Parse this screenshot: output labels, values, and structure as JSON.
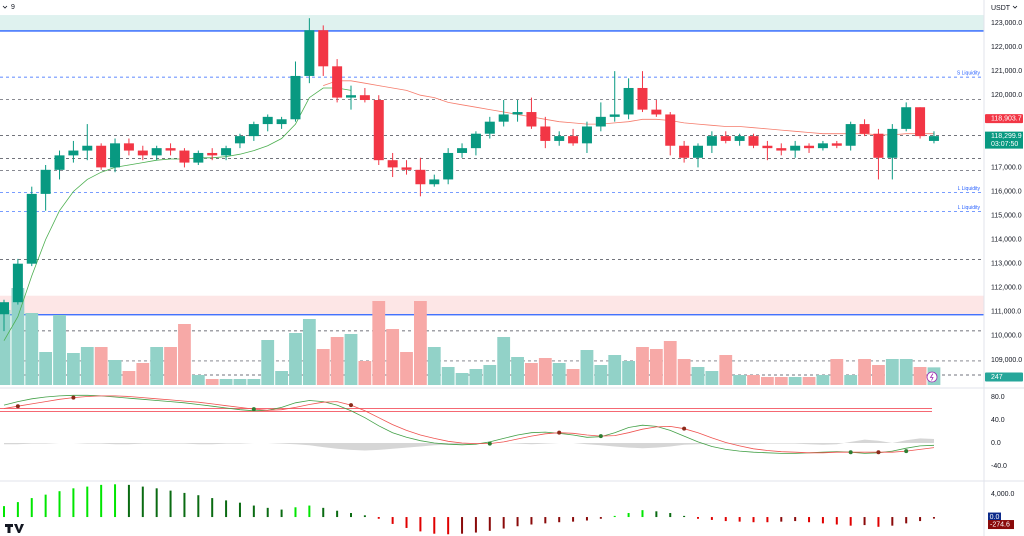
{
  "chart_data": [
    {
      "type": "candlestick",
      "interval": "9",
      "currency": "USDT",
      "ylim": [
        107960,
        123955
      ],
      "yticks": [
        {
          "value": 123000,
          "label": "123,000.0"
        },
        {
          "value": 122000,
          "label": "122,000.0"
        },
        {
          "value": 121000,
          "label": "121,000.0"
        },
        {
          "value": 120000,
          "label": "120,000.0"
        },
        {
          "value": 119000,
          "label": "119,000.0"
        },
        {
          "value": 117000,
          "label": "117,000.0"
        },
        {
          "value": 116000,
          "label": "116,000.0"
        },
        {
          "value": 115000,
          "label": "115,000.0"
        },
        {
          "value": 114000,
          "label": "114,000.0"
        },
        {
          "value": 113000,
          "label": "113,000.0"
        },
        {
          "value": 112000,
          "label": "112,000.0"
        },
        {
          "value": 111000,
          "label": "111,000.0"
        },
        {
          "value": 110000,
          "label": "110,000.0"
        },
        {
          "value": 109000,
          "label": "109,000.0"
        }
      ],
      "zones": [
        {
          "from": 122670,
          "to": 123330,
          "color": "#dff2ef"
        },
        {
          "from": 110880,
          "to": 111670,
          "color": "#fde6e6"
        }
      ],
      "solid_lines": [
        {
          "value": 122670,
          "color": "#2962ff"
        },
        {
          "value": 110880,
          "color": "#2962ff"
        }
      ],
      "levels": [
        {
          "value": 120750,
          "label": "S Liquidity"
        },
        {
          "value": 119830
        },
        {
          "value": 118330
        },
        {
          "value": 117375
        },
        {
          "value": 116875
        },
        {
          "value": 115960,
          "label": "L Liquidity"
        },
        {
          "value": 115170,
          "label": "L Liquidity"
        },
        {
          "value": 113170
        },
        {
          "value": 110210
        },
        {
          "value": 108960
        },
        {
          "value": 108375
        }
      ],
      "colors": {
        "up": "#089981",
        "down": "#f23645",
        "up_volume": "#92d2c8",
        "down_volume": "#f7a9a7",
        "ma_fast": "#4caf50",
        "ma_slow": "#f57c6c"
      },
      "open": [
        110900,
        111400,
        113000,
        115900,
        116900,
        117500,
        117700,
        117900,
        117000,
        118000,
        117700,
        117500,
        117800,
        117700,
        117200,
        117600,
        117500,
        118000,
        118300,
        118800,
        118800,
        119000,
        120800,
        122700,
        121200,
        119900,
        120000,
        119800,
        117300,
        117000,
        116900,
        116300,
        116500,
        117600,
        117800,
        118400,
        118900,
        119200,
        119300,
        118700,
        118100,
        118300,
        118000,
        118700,
        119100,
        119200,
        120300,
        119400,
        119200,
        117900,
        117400,
        117900,
        118300,
        118100,
        118300,
        117900,
        117800,
        117700,
        117900,
        117800,
        118000,
        117900,
        118800,
        118400,
        117400,
        118600,
        119500,
        118100
      ],
      "high": [
        111500,
        113200,
        116200,
        117100,
        117700,
        118100,
        118800,
        118000,
        118200,
        118200,
        117900,
        117900,
        118000,
        117800,
        117700,
        117800,
        117900,
        118400,
        118900,
        119200,
        119100,
        121400,
        123200,
        122900,
        121500,
        120400,
        120300,
        120000,
        117600,
        117300,
        117400,
        116700,
        117800,
        118000,
        118500,
        119100,
        119800,
        119800,
        119900,
        119100,
        118500,
        118600,
        118900,
        119700,
        121000,
        120700,
        121000,
        119800,
        119300,
        118100,
        118000,
        118500,
        118500,
        118400,
        118400,
        118100,
        118000,
        118100,
        118000,
        118100,
        118100,
        118900,
        119000,
        118600,
        118800,
        119700,
        119500,
        118500
      ],
      "low": [
        110200,
        111300,
        112900,
        115200,
        116500,
        117200,
        117300,
        116900,
        116800,
        117500,
        117300,
        117300,
        117500,
        117000,
        117100,
        117300,
        117300,
        117800,
        118100,
        118500,
        118600,
        118900,
        120500,
        120800,
        119700,
        119400,
        119700,
        117100,
        116600,
        116700,
        115800,
        116200,
        116300,
        117400,
        117500,
        118200,
        118700,
        118900,
        118600,
        117800,
        117900,
        117900,
        117600,
        118500,
        118900,
        119000,
        119300,
        119100,
        117500,
        117200,
        117000,
        117600,
        118000,
        117900,
        117800,
        117300,
        117500,
        117400,
        117600,
        117700,
        117800,
        117700,
        118300,
        116500,
        116500,
        118500,
        118200,
        118000
      ],
      "close": [
        111400,
        113000,
        115900,
        116900,
        117500,
        117700,
        117900,
        117000,
        118000,
        117700,
        117500,
        117800,
        117700,
        117200,
        117600,
        117500,
        117800,
        118300,
        118800,
        119100,
        119000,
        120800,
        122700,
        121200,
        119900,
        120000,
        119800,
        117300,
        117000,
        116900,
        116300,
        116500,
        117600,
        117800,
        118400,
        118900,
        119200,
        119300,
        118700,
        118100,
        118300,
        118000,
        118700,
        119100,
        119200,
        120300,
        119400,
        119200,
        117900,
        117400,
        117900,
        118300,
        118100,
        118300,
        117900,
        117800,
        117700,
        117900,
        117800,
        118000,
        117900,
        118800,
        118400,
        117400,
        118600,
        119500,
        118300,
        118299.9
      ],
      "volume_ylim": [
        0,
        5390
      ],
      "volumes": [
        1050,
        1358,
        1008,
        462,
        980,
        448,
        532,
        532,
        350,
        196,
        308,
        532,
        532,
        854,
        140,
        84,
        84,
        84,
        84,
        630,
        196,
        728,
        924,
        504,
        672,
        714,
        336,
        1176,
        784,
        462,
        1176,
        532,
        252,
        168,
        224,
        280,
        672,
        392,
        308,
        378,
        308,
        224,
        490,
        280,
        420,
        336,
        532,
        504,
        616,
        364,
        252,
        196,
        420,
        140,
        140,
        112,
        112,
        112,
        112,
        140,
        364,
        140,
        364,
        280,
        364,
        364,
        252,
        247
      ],
      "ma_fast": [
        109800,
        110800,
        112500,
        114000,
        115200,
        116000,
        116500,
        116800,
        117000,
        117100,
        117200,
        117300,
        117350,
        117350,
        117400,
        117400,
        117450,
        117550,
        117700,
        117900,
        118200,
        118800,
        119900,
        120300,
        120300,
        120200,
        null,
        null,
        null,
        null,
        null,
        null,
        null,
        null,
        null,
        null,
        null,
        null,
        null,
        null,
        null,
        null,
        null,
        null,
        null,
        null,
        null,
        null,
        null,
        null,
        null,
        null,
        null,
        null,
        null,
        null,
        null,
        null,
        null,
        null,
        null,
        null,
        null,
        null,
        null,
        null,
        null,
        null
      ],
      "ma_slow": [
        null,
        null,
        null,
        null,
        null,
        null,
        null,
        null,
        null,
        null,
        null,
        null,
        null,
        null,
        null,
        null,
        null,
        null,
        null,
        null,
        null,
        null,
        null,
        120400,
        120600,
        120600,
        120500,
        120400,
        120300,
        120200,
        120000,
        119900,
        119700,
        119600,
        119500,
        119400,
        119300,
        119200,
        119100,
        119000,
        118900,
        118850,
        118800,
        118800,
        118850,
        118900,
        119000,
        119000,
        118950,
        118850,
        118800,
        118750,
        118700,
        118700,
        118650,
        118600,
        118550,
        118500,
        118450,
        118400,
        118400,
        118400,
        118400,
        118350,
        118350,
        118400,
        118400,
        118400
      ],
      "ma_price": {
        "value": 118903.7,
        "label": "118,903.7"
      },
      "last_price": {
        "value": 118299.9,
        "label": "118,299.9"
      },
      "countdown": "03:07:50"
    },
    {
      "type": "line",
      "ylim": [
        -64.3,
        95.7
      ],
      "yticks": [
        {
          "value": 80,
          "label": "80.0"
        },
        {
          "value": 40,
          "label": "40.0"
        },
        {
          "value": 0,
          "label": "0.0"
        },
        {
          "value": -40,
          "label": "-40.0"
        }
      ],
      "hlines": [
        {
          "value": 60,
          "color": "#f23645"
        },
        {
          "value": 55,
          "color": "#f23645"
        }
      ],
      "area": {
        "color": "#d6d6d6",
        "values": [
          -2,
          -2,
          -1,
          -1,
          0,
          0,
          -1,
          -1,
          -2,
          -2,
          -1,
          -1,
          -1,
          -1,
          -2,
          -2,
          -1,
          -1,
          0,
          0,
          -1,
          -2,
          -4,
          -7,
          -10,
          -12,
          -13,
          -12,
          -10,
          -8,
          -6,
          -4,
          -3,
          -2,
          -1,
          0,
          0,
          -1,
          -2,
          -1,
          0,
          0,
          -2,
          -4,
          -6,
          -8,
          -9,
          -8,
          -6,
          -3,
          -2,
          -1,
          -1,
          -2,
          -2,
          -1,
          -1,
          -1,
          -2,
          -3,
          -2,
          2,
          6,
          4,
          0,
          5,
          8,
          7
        ]
      },
      "series": [
        {
          "color": "#43a047",
          "values": [
            66,
            72,
            77,
            80,
            82,
            83,
            83,
            82,
            80,
            78,
            76,
            74,
            72,
            70,
            67,
            64,
            61,
            58,
            56,
            57,
            62,
            70,
            74,
            72,
            66,
            56,
            44,
            30,
            18,
            10,
            4,
            0,
            -2,
            -3,
            -2,
            2,
            8,
            14,
            18,
            19,
            17,
            14,
            10,
            11,
            18,
            27,
            31,
            29,
            22,
            12,
            2,
            -6,
            -11,
            -14,
            -16,
            -17,
            -18,
            -18,
            -17,
            -16,
            -15,
            -16,
            -18,
            -17,
            -14,
            -9,
            -5,
            -4
          ]
        },
        {
          "color": "#ef5350",
          "values": [
            60,
            64,
            68,
            72,
            76,
            79,
            81,
            82,
            82,
            81,
            79,
            77,
            75,
            73,
            71,
            68,
            65,
            62,
            59,
            57,
            58,
            62,
            67,
            71,
            72,
            66,
            56,
            44,
            32,
            22,
            14,
            8,
            3,
            0,
            -1,
            -1,
            2,
            7,
            12,
            16,
            18,
            17,
            14,
            12,
            13,
            18,
            24,
            28,
            29,
            25,
            18,
            9,
            1,
            -5,
            -10,
            -13,
            -15,
            -16,
            -17,
            -17,
            -16,
            -16,
            -16,
            -16,
            -16,
            -14,
            -11,
            -8
          ]
        }
      ],
      "crosses": [
        {
          "index": 1,
          "color": "#8b2a1a"
        },
        {
          "index": 5,
          "color": "#8b2a1a"
        },
        {
          "index": 18,
          "color": "#2e7d32"
        },
        {
          "index": 25,
          "color": "#8b2a1a"
        },
        {
          "index": 35,
          "color": "#2e7d32"
        },
        {
          "index": 40,
          "color": "#8b2a1a"
        },
        {
          "index": 43,
          "color": "#2e7d32"
        },
        {
          "index": 49,
          "color": "#8b2a1a"
        },
        {
          "index": 61,
          "color": "#2e7d32"
        },
        {
          "index": 63,
          "color": "#8b2a1a"
        },
        {
          "index": 65,
          "color": "#2e7d32"
        }
      ]
    },
    {
      "type": "bar",
      "ylim": [
        -3300,
        6100
      ],
      "yticks": [
        {
          "value": 4000,
          "label": "4,000.0"
        }
      ],
      "colors": {
        "pos_rising": "#00e600",
        "pos_falling": "#0a6b12",
        "neg_falling": "#e00000",
        "neg_rising": "#8a0a0a",
        "signal": "#0c2a8a"
      },
      "values": [
        1900,
        2600,
        3300,
        3900,
        4500,
        5000,
        5300,
        5600,
        5700,
        5600,
        5300,
        5000,
        4600,
        4200,
        3800,
        3300,
        2900,
        2500,
        2000,
        1600,
        1300,
        1700,
        2000,
        1600,
        1100,
        700,
        300,
        -300,
        -1200,
        -1900,
        -2500,
        -2900,
        -3000,
        -2900,
        -2700,
        -2400,
        -2000,
        -1600,
        -1300,
        -1100,
        -900,
        -800,
        -600,
        -300,
        200,
        700,
        1200,
        1000,
        700,
        200,
        -300,
        -500,
        -700,
        -800,
        -900,
        -900,
        -800,
        -700,
        -900,
        -1100,
        -1300,
        -1500,
        -1400,
        -1700,
        -1500,
        -1100,
        -700,
        -274.6
      ],
      "signal": {
        "value": 0,
        "label": "0.0"
      }
    }
  ]
}
